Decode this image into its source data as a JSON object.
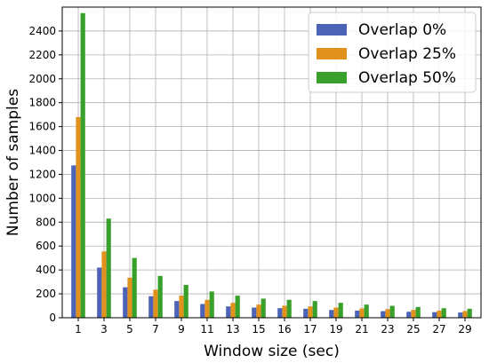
{
  "chart_data": {
    "type": "bar",
    "xlabel": "Window size (sec)",
    "ylabel": "Number of samples",
    "ylim": [
      0,
      2600
    ],
    "yticks": [
      0,
      200,
      400,
      600,
      800,
      1000,
      1200,
      1400,
      1600,
      1800,
      2000,
      2200,
      2400
    ],
    "grid": true,
    "legend_position": "top-right",
    "categories": [
      "1",
      "3",
      "5",
      "7",
      "9",
      "11",
      "13",
      "15",
      "16",
      "17",
      "19",
      "21",
      "23",
      "25",
      "27",
      "29"
    ],
    "series": [
      {
        "name": "Overlap 0%",
        "color": "#4c63b8",
        "values": [
          1275,
          420,
          255,
          180,
          140,
          115,
          95,
          85,
          80,
          75,
          65,
          60,
          55,
          50,
          47,
          44
        ]
      },
      {
        "name": "Overlap 25%",
        "color": "#e0921c",
        "values": [
          1680,
          555,
          335,
          235,
          185,
          150,
          125,
          110,
          100,
          95,
          85,
          78,
          72,
          66,
          60,
          56
        ]
      },
      {
        "name": "Overlap 50%",
        "color": "#3aa02c",
        "values": [
          2550,
          830,
          500,
          350,
          275,
          220,
          185,
          160,
          150,
          140,
          125,
          110,
          100,
          90,
          80,
          75
        ]
      }
    ]
  }
}
